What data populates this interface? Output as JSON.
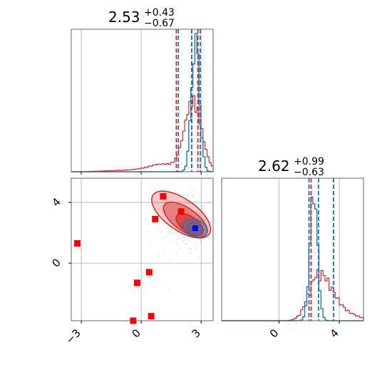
{
  "chart_data": {
    "type": "corner",
    "colors": {
      "model_a": "#1f77b4",
      "model_b": "#d62728",
      "marker_a": "#ff0000",
      "marker_b": "#0000ff"
    },
    "titles": [
      {
        "value": "2.53",
        "upper": "+0.43",
        "lower": "−0.67"
      },
      {
        "value": "2.62",
        "upper": "+0.99",
        "lower": "−0.63"
      }
    ],
    "x_ticks_param1": [
      "−3",
      "0",
      "3"
    ],
    "x_ticks_param2": [
      "0",
      "4"
    ],
    "y_ticks_param2": [
      "0",
      "4"
    ],
    "param1_range": [
      -3.5,
      3.6
    ],
    "param2_range": [
      -3.8,
      5.6
    ],
    "hist1": {
      "quantiles_blue": [
        1.86,
        2.53,
        2.96
      ],
      "quantiles_red": [
        1.76,
        2.53,
        2.84
      ]
    },
    "hist2": {
      "quantiles_blue": [
        1.99,
        2.62,
        3.61
      ],
      "quantiles_red": [
        1.99,
        2.13,
        3.61
      ]
    },
    "scatter_points": [
      {
        "x": -3.2,
        "y": 1.3
      },
      {
        "x": 1.1,
        "y": 4.4
      },
      {
        "x": 2.0,
        "y": 3.4
      },
      {
        "x": 0.7,
        "y": 2.9
      },
      {
        "x": 0.4,
        "y": -0.6
      },
      {
        "x": -0.2,
        "y": -1.3
      },
      {
        "x": 0.5,
        "y": -3.5
      },
      {
        "x": -0.4,
        "y": -3.8
      }
    ],
    "truth_point": {
      "x": 2.7,
      "y": 2.3
    }
  }
}
